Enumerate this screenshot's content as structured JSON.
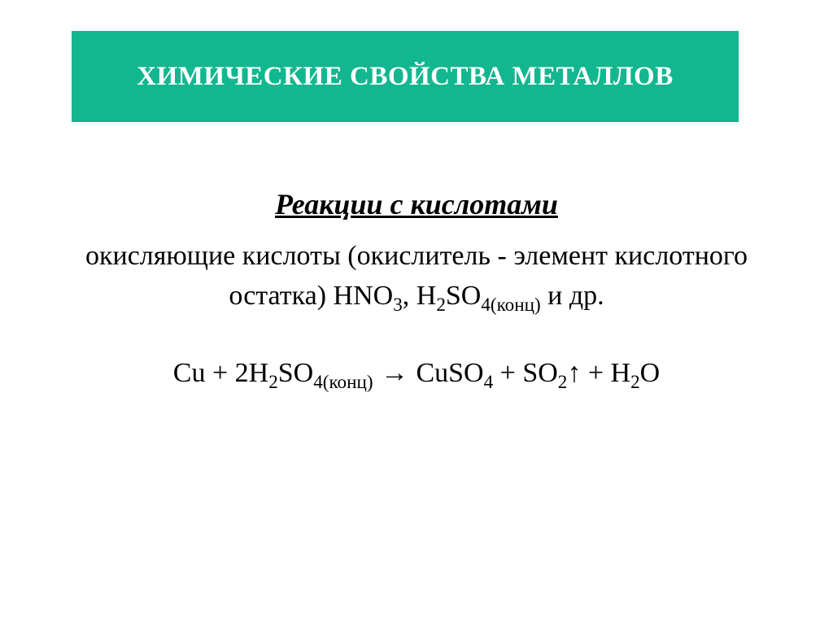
{
  "banner": {
    "bg_color": "#12b78f",
    "fg_color": "#ffffff",
    "title": "ХИМИЧЕСКИЕ СВОЙСТВА МЕТАЛЛОВ"
  },
  "section": {
    "subtitle": "Реакции с кислотами",
    "explanation_prefix": "окисляющие кислоты (окислитель - элемент кислотного остатка) HNO",
    "hno3_sub": "3",
    "explanation_mid": ", H",
    "h2_sub": "2",
    "so": "SO",
    "so4_sub": "4(конц)",
    "explanation_suffix": " и др.",
    "eq": {
      "cu": "Cu + 2H",
      "two": "2",
      "so4_l": "SO",
      "so4conc": "4(конц)",
      "arrow": " → ",
      "cuso": " CuSO",
      "four": "4",
      "plus_so": " + SO",
      "two2": "2",
      "up": "↑",
      "plus_h": " + H",
      "two3": "2",
      "o": "O"
    }
  }
}
